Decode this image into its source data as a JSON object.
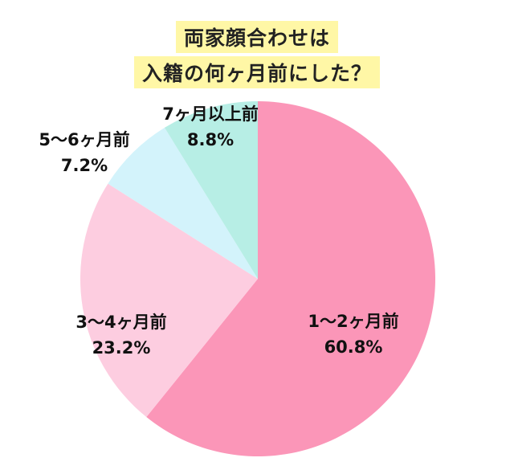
{
  "chart_data": {
    "type": "pie",
    "title_lines": [
      "両家顔合わせは",
      "入籍の何ヶ月前にした？"
    ],
    "slices": [
      {
        "label": "1～2ヶ月前",
        "value": 60.8,
        "value_label": "60.8%",
        "color": "#fb96b8"
      },
      {
        "label": "3～4ヶ月前",
        "value": 23.2,
        "value_label": "23.2%",
        "color": "#fdcde0"
      },
      {
        "label": "5～6ヶ月前",
        "value": 7.2,
        "value_label": "7.2%",
        "color": "#d3f3fb"
      },
      {
        "label": "7ヶ月以上前",
        "value": 8.8,
        "value_label": "8.8%",
        "color": "#b7eee5"
      }
    ]
  }
}
